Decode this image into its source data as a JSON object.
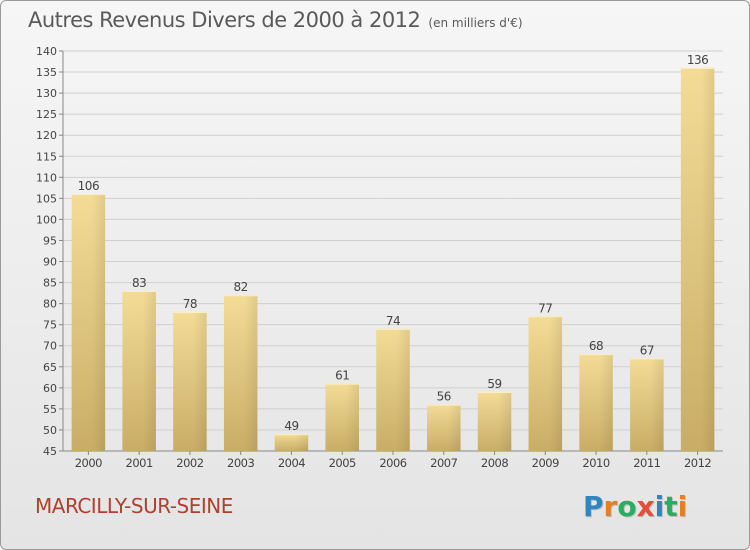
{
  "header": {
    "title": "Autres Revenus Divers de 2000 à 2012",
    "unit": "(en milliers d'€)"
  },
  "footer": {
    "commune": "MARCILLY-SUR-SEINE",
    "brand": "Proxiti",
    "brand_letters": [
      "P",
      "r",
      "o",
      "x",
      "i",
      "t",
      "i"
    ],
    "brand_colors": [
      "#2e86c1",
      "#e67e22",
      "#27ae60",
      "#e74c3c",
      "#2e86c1",
      "#27ae60",
      "#e67e22"
    ]
  },
  "colors": {
    "bar_light": "#f3dc96",
    "bar_dark": "#c9ad66",
    "grid": "#cfcfcf",
    "text": "#444444",
    "commune": "#b0402f"
  },
  "chart_data": {
    "type": "bar",
    "title": "Autres Revenus Divers de 2000 à 2012",
    "ylabel": "(en milliers d'€)",
    "xlabel": "",
    "categories": [
      "2000",
      "2001",
      "2002",
      "2003",
      "2004",
      "2005",
      "2006",
      "2007",
      "2008",
      "2009",
      "2010",
      "2011",
      "2012"
    ],
    "values": [
      106,
      83,
      78,
      82,
      49,
      61,
      74,
      56,
      59,
      77,
      68,
      67,
      136
    ],
    "ylim": [
      45,
      140
    ],
    "ytick_step": 5,
    "grid": true,
    "data_labels": true
  }
}
